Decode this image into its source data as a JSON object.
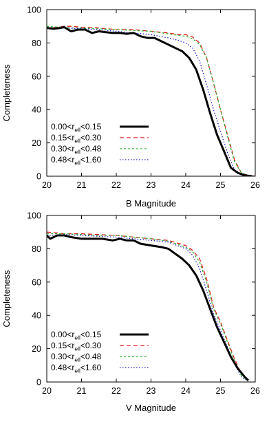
{
  "chart_data": [
    {
      "type": "line",
      "title": "",
      "xlabel": "B Magnitude",
      "ylabel": "Completeness",
      "xlim": [
        20,
        26
      ],
      "ylim": [
        0,
        100
      ],
      "xticks": [
        "20",
        "21",
        "22",
        "23",
        "24",
        "25",
        "26"
      ],
      "yticks": [
        "0",
        "20",
        "40",
        "60",
        "80",
        "100"
      ],
      "legend_position": "lower-left",
      "grid": false,
      "series": [
        {
          "name": "0.00<r_ell<0.15",
          "label_main": "0.00<r",
          "label_sub": "ell",
          "label_tail": "<0.15",
          "color": "#000000",
          "dash": "solid",
          "width": 3,
          "x": [
            20.0,
            20.2,
            20.4,
            20.5,
            20.7,
            20.9,
            21.1,
            21.3,
            21.5,
            21.7,
            21.9,
            22.1,
            22.3,
            22.5,
            22.7,
            22.9,
            23.1,
            23.3,
            23.5,
            23.7,
            23.9,
            24.1,
            24.3,
            24.5,
            24.7,
            24.9,
            25.1,
            25.3,
            25.5,
            25.7,
            25.9
          ],
          "y": [
            89,
            88.5,
            89,
            89.5,
            87,
            88,
            88,
            86,
            87,
            86.5,
            86,
            86,
            85.5,
            86,
            84,
            83,
            83,
            81,
            79,
            77,
            75,
            71,
            64,
            52,
            38,
            25,
            15,
            5,
            2,
            0.5,
            0
          ]
        },
        {
          "name": "0.15<r_ell<0.30",
          "label_main": "0.15<r",
          "label_sub": "ell",
          "label_tail": "<0.30",
          "color": "#e41a1c",
          "dash": "6,4",
          "width": 1.3,
          "x": [
            20.0,
            20.3,
            20.5,
            20.7,
            21.0,
            21.5,
            22.0,
            22.5,
            23.0,
            23.5,
            23.8,
            24.0,
            24.2,
            24.4,
            24.6,
            24.8,
            25.0,
            25.2,
            25.4,
            25.6,
            25.8,
            26.0
          ],
          "y": [
            89,
            89.5,
            90,
            90,
            89.5,
            89,
            88,
            88,
            87,
            86,
            85,
            85,
            83.5,
            80,
            71,
            56,
            40,
            25,
            10,
            2,
            0.5,
            0
          ]
        },
        {
          "name": "0.30<r_ell<0.48",
          "label_main": "0.30<r",
          "label_sub": "ell",
          "label_tail": "<0.48",
          "color": "#33b233",
          "dash": "3,3",
          "width": 1.3,
          "x": [
            20.0,
            20.3,
            20.5,
            20.7,
            21.0,
            21.5,
            22.0,
            22.5,
            23.0,
            23.5,
            23.8,
            24.0,
            24.2,
            24.4,
            24.6,
            24.8,
            25.0,
            25.2,
            25.4,
            25.6,
            25.8,
            26.0
          ],
          "y": [
            90,
            89.5,
            89.5,
            89,
            89,
            88.5,
            88,
            87.5,
            87,
            85.5,
            84.5,
            84,
            82.5,
            79,
            71,
            56,
            40,
            24,
            9,
            2,
            0.5,
            0
          ]
        },
        {
          "name": "0.48<r_ell<1.60",
          "label_main": "0.48<r",
          "label_sub": "ell",
          "label_tail": "<1.60",
          "color": "#2020d0",
          "dash": "1.5,2.5",
          "width": 1.3,
          "x": [
            20.0,
            20.3,
            20.5,
            21.0,
            21.5,
            22.0,
            22.5,
            23.0,
            23.5,
            23.8,
            24.0,
            24.2,
            24.4,
            24.6,
            24.8,
            25.0,
            25.2,
            25.4,
            25.6,
            25.8,
            26.0
          ],
          "y": [
            89,
            89,
            89,
            88.5,
            88,
            87,
            86,
            85,
            83,
            81.5,
            80,
            77,
            69,
            55,
            40,
            27,
            14,
            4,
            1,
            0.3,
            0
          ]
        }
      ]
    },
    {
      "type": "line",
      "title": "",
      "xlabel": "V Magnitude",
      "ylabel": "Completeness",
      "xlim": [
        20,
        26
      ],
      "ylim": [
        0,
        100
      ],
      "xticks": [
        "20",
        "21",
        "22",
        "23",
        "24",
        "25",
        "26"
      ],
      "yticks": [
        "0",
        "20",
        "40",
        "60",
        "80",
        "100"
      ],
      "legend_position": "lower-left",
      "grid": false,
      "series": [
        {
          "name": "0.00<r_ell<0.15",
          "label_main": "0.00<r",
          "label_sub": "ell",
          "label_tail": "<0.15",
          "color": "#000000",
          "dash": "solid",
          "width": 3,
          "x": [
            20.0,
            20.1,
            20.3,
            20.5,
            20.7,
            21.0,
            21.3,
            21.6,
            21.9,
            22.1,
            22.3,
            22.5,
            22.7,
            23.0,
            23.3,
            23.5,
            23.7,
            23.9,
            24.1,
            24.3,
            24.5,
            24.7,
            24.9,
            25.1,
            25.3,
            25.5,
            25.7,
            25.8
          ],
          "y": [
            88,
            86,
            88,
            88,
            87,
            86,
            86,
            86,
            85,
            86,
            85,
            85,
            83,
            82,
            81,
            80,
            77,
            74,
            70,
            64,
            55,
            44,
            33,
            24,
            15,
            8,
            3,
            1
          ]
        },
        {
          "name": "0.15<r_ell<0.30",
          "label_main": "0.15<r",
          "label_sub": "ell",
          "label_tail": "<0.30",
          "color": "#e41a1c",
          "dash": "6,4",
          "width": 1.3,
          "x": [
            20.0,
            20.3,
            20.5,
            21.0,
            21.5,
            22.0,
            22.5,
            23.0,
            23.5,
            24.0,
            24.2,
            24.4,
            24.6,
            24.8,
            25.0,
            25.2,
            25.4,
            25.6,
            25.8
          ],
          "y": [
            90,
            89.5,
            89,
            89,
            88.5,
            88,
            87,
            86,
            85,
            82,
            79,
            74,
            62,
            45,
            36,
            25,
            14,
            5,
            1
          ]
        },
        {
          "name": "0.30<r_ell<0.48",
          "label_main": "0.30<r",
          "label_sub": "ell",
          "label_tail": "<0.48",
          "color": "#33b233",
          "dash": "3,3",
          "width": 1.3,
          "x": [
            20.0,
            20.3,
            20.5,
            21.0,
            21.5,
            22.0,
            22.5,
            23.0,
            23.5,
            24.0,
            24.2,
            24.4,
            24.6,
            24.8,
            25.0,
            25.2,
            25.4,
            25.6,
            25.8
          ],
          "y": [
            89,
            89,
            89,
            88.5,
            88,
            88,
            87,
            86,
            84.5,
            81,
            78,
            72,
            60,
            44,
            35,
            24,
            13,
            4,
            0.5
          ]
        },
        {
          "name": "0.48<r_ell<1.60",
          "label_main": "0.48<r",
          "label_sub": "ell",
          "label_tail": "<1.60",
          "color": "#2020d0",
          "dash": "1.5,2.5",
          "width": 1.3,
          "x": [
            20.0,
            20.3,
            20.5,
            21.0,
            21.5,
            22.0,
            22.5,
            23.0,
            23.5,
            24.0,
            24.2,
            24.4,
            24.6,
            24.8,
            25.0,
            25.2,
            25.4,
            25.6,
            25.8
          ],
          "y": [
            88,
            88,
            88.5,
            88,
            87.5,
            87,
            86,
            85,
            84,
            80,
            76,
            68,
            55,
            41,
            31,
            21,
            11,
            3,
            0.5
          ]
        }
      ]
    }
  ]
}
